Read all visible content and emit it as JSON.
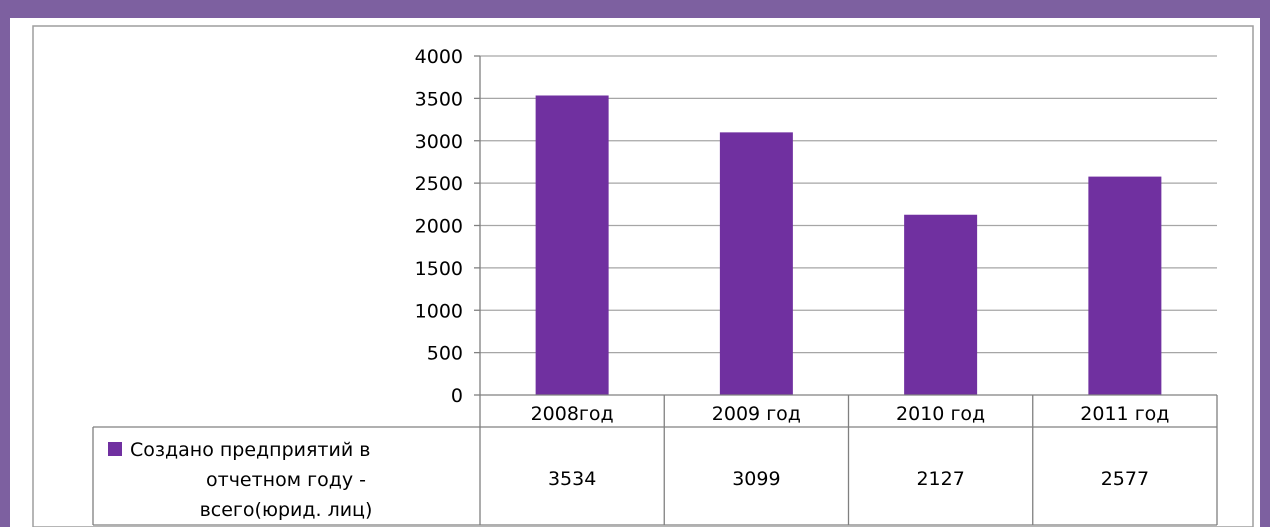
{
  "chart_data": {
    "type": "bar",
    "categories": [
      "2008год",
      "2009 год",
      "2010 год",
      "2011 год"
    ],
    "series": [
      {
        "name_lines": [
          "Создано предприятий в",
          "отчетном году -",
          "всего(юрид. лиц)"
        ],
        "values": [
          3534,
          3099,
          2127,
          2577
        ],
        "value_labels": [
          "3534",
          "3099",
          "2127",
          "2577"
        ],
        "color": "#7030a0"
      }
    ],
    "yticks": [
      "0",
      "500",
      "1000",
      "1500",
      "2000",
      "2500",
      "3000",
      "3500",
      "4000"
    ],
    "ylim": [
      0,
      4000
    ],
    "grid": true,
    "data_table": true
  },
  "colors": {
    "frame": "#7d60a0",
    "bar": "#7030a0",
    "grid": "#a6a6a6"
  }
}
